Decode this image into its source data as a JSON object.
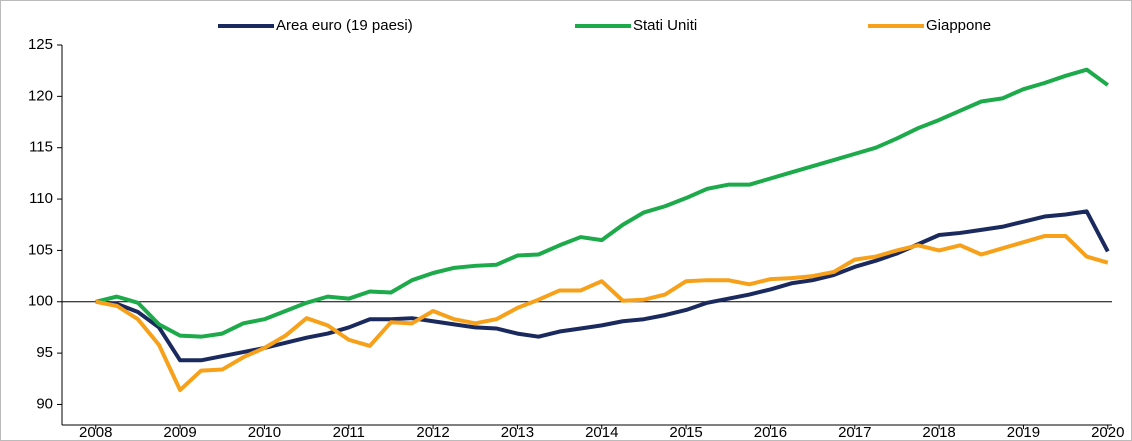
{
  "chart_data": {
    "type": "line",
    "x": [
      2008,
      2008.25,
      2008.5,
      2008.75,
      2009,
      2009.25,
      2009.5,
      2009.75,
      2010,
      2010.25,
      2010.5,
      2010.75,
      2011,
      2011.25,
      2011.5,
      2011.75,
      2012,
      2012.25,
      2012.5,
      2012.75,
      2013,
      2013.25,
      2013.5,
      2013.75,
      2014,
      2014.25,
      2014.5,
      2014.75,
      2015,
      2015.25,
      2015.5,
      2015.75,
      2016,
      2016.25,
      2016.5,
      2016.75,
      2017,
      2017.25,
      2017.5,
      2017.75,
      2018,
      2018.25,
      2018.5,
      2018.75,
      2019,
      2019.25,
      2019.5,
      2019.75,
      2020
    ],
    "series": [
      {
        "name": "Area euro (19 paesi)",
        "color": "#1b2a5e",
        "values": [
          100,
          99.8,
          99.0,
          97.5,
          94.3,
          94.3,
          94.7,
          95.1,
          95.5,
          96.0,
          96.5,
          96.9,
          97.5,
          98.3,
          98.3,
          98.4,
          98.1,
          97.8,
          97.5,
          97.4,
          96.9,
          96.6,
          97.1,
          97.4,
          97.7,
          98.1,
          98.3,
          98.7,
          99.2,
          99.9,
          100.3,
          100.7,
          101.2,
          101.8,
          102.1,
          102.6,
          103.4,
          104.0,
          104.7,
          105.6,
          106.5,
          106.7,
          107.0,
          107.3,
          107.8,
          108.3,
          108.5,
          108.8,
          104.9
        ]
      },
      {
        "name": "Stati Uniti",
        "color": "#1daa4b",
        "values": [
          100,
          100.5,
          99.9,
          97.8,
          96.7,
          96.6,
          96.9,
          97.9,
          98.3,
          99.1,
          99.9,
          100.5,
          100.3,
          101.0,
          100.9,
          102.1,
          102.8,
          103.3,
          103.5,
          103.6,
          104.5,
          104.6,
          105.5,
          106.3,
          106.0,
          107.5,
          108.7,
          109.3,
          110.1,
          111.0,
          111.4,
          111.4,
          112.0,
          112.6,
          113.2,
          113.8,
          114.4,
          115.0,
          115.9,
          116.9,
          117.7,
          118.6,
          119.5,
          119.8,
          120.7,
          121.3,
          122.0,
          122.6,
          121.1
        ]
      },
      {
        "name": "Giappone",
        "color": "#f7a11a",
        "values": [
          100,
          99.6,
          98.3,
          95.8,
          91.4,
          93.3,
          93.4,
          94.6,
          95.5,
          96.7,
          98.4,
          97.7,
          96.3,
          95.7,
          98.0,
          97.9,
          99.1,
          98.3,
          97.9,
          98.3,
          99.4,
          100.2,
          101.1,
          101.1,
          102.0,
          100.1,
          100.2,
          100.7,
          102.0,
          102.1,
          102.1,
          101.7,
          102.2,
          102.3,
          102.5,
          102.9,
          104.1,
          104.4,
          105.0,
          105.5,
          105.0,
          105.5,
          104.6,
          105.2,
          105.8,
          106.4,
          106.4,
          104.4,
          103.8
        ]
      }
    ],
    "xlim": [
      2007.6,
      2020.05
    ],
    "xticks": [
      2008,
      2009,
      2010,
      2011,
      2012,
      2013,
      2014,
      2015,
      2016,
      2017,
      2018,
      2019,
      2020
    ],
    "ylim": [
      88,
      125
    ],
    "yticks": [
      90,
      95,
      100,
      105,
      110,
      115,
      120,
      125
    ],
    "baseline": 100,
    "legend": "top"
  }
}
